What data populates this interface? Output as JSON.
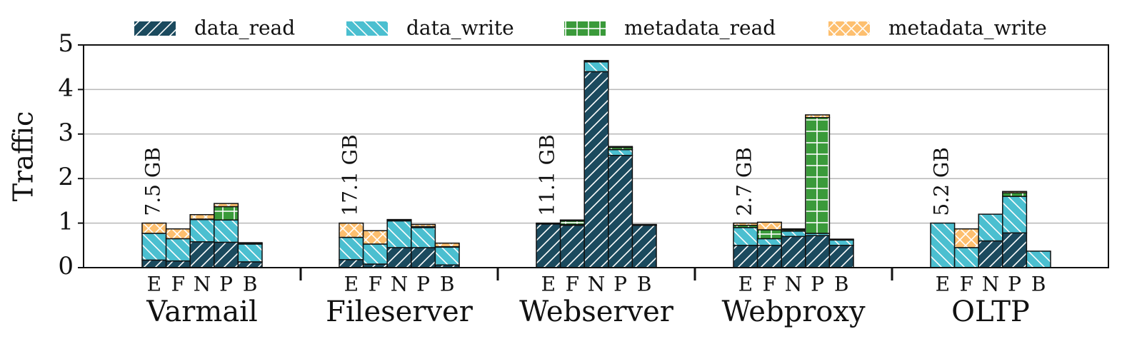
{
  "chart_data": {
    "type": "grouped-stacked-bar",
    "ylabel": "Traffic",
    "categories": [
      "Varmail",
      "Fileserver",
      "Webserver",
      "Webproxy",
      "OLTP"
    ],
    "subcategories": [
      "E",
      "F",
      "N",
      "P",
      "B"
    ],
    "annotations": [
      "7.5 GB",
      "17.1 GB",
      "11.1 GB",
      "2.7 GB",
      "5.2 GB"
    ],
    "ylim": [
      0,
      5
    ],
    "yticks": [
      0,
      1,
      2,
      3,
      4,
      5
    ],
    "grid": true,
    "legend": "upper center",
    "series": [
      {
        "name": "data_read",
        "color": "#1b4a5e",
        "hatch": "/",
        "values": [
          [
            0.17,
            0.15,
            0.58,
            0.57,
            0.13
          ],
          [
            0.18,
            0.08,
            0.45,
            0.45,
            0.06
          ],
          [
            0.98,
            0.95,
            4.4,
            2.52,
            0.95
          ],
          [
            0.5,
            0.5,
            0.7,
            0.72,
            0.5
          ],
          [
            0,
            0,
            0.6,
            0.78,
            0
          ]
        ]
      },
      {
        "name": "data_write",
        "color": "#4bbfd0",
        "hatch": "\\",
        "values": [
          [
            0.6,
            0.5,
            0.5,
            0.5,
            0.4
          ],
          [
            0.5,
            0.45,
            0.6,
            0.45,
            0.4
          ],
          [
            0.01,
            0.02,
            0.22,
            0.13,
            0.01
          ],
          [
            0.4,
            0.15,
            0.12,
            0.05,
            0.12
          ],
          [
            1.0,
            0.45,
            0.6,
            0.82,
            0.37
          ]
        ]
      },
      {
        "name": "metadata_read",
        "color": "#3a9a3a",
        "hatch": "+",
        "values": [
          [
            0,
            0,
            0.01,
            0.3,
            0.01
          ],
          [
            0,
            0,
            0.01,
            0.02,
            0.01
          ],
          [
            0.01,
            0.08,
            0.02,
            0.05,
            0.01
          ],
          [
            0.05,
            0.2,
            0.03,
            2.6,
            0.01
          ],
          [
            0,
            0,
            0,
            0.08,
            0
          ]
        ]
      },
      {
        "name": "metadata_write",
        "color": "#fdbf6f",
        "hatch": "x",
        "values": [
          [
            0.23,
            0.22,
            0.1,
            0.07,
            0.02
          ],
          [
            0.32,
            0.3,
            0.02,
            0.05,
            0.08
          ],
          [
            0,
            0.02,
            0.01,
            0.02,
            0
          ],
          [
            0.05,
            0.17,
            0.02,
            0.06,
            0.01
          ],
          [
            0,
            0.42,
            0,
            0.03,
            0
          ]
        ]
      }
    ]
  }
}
